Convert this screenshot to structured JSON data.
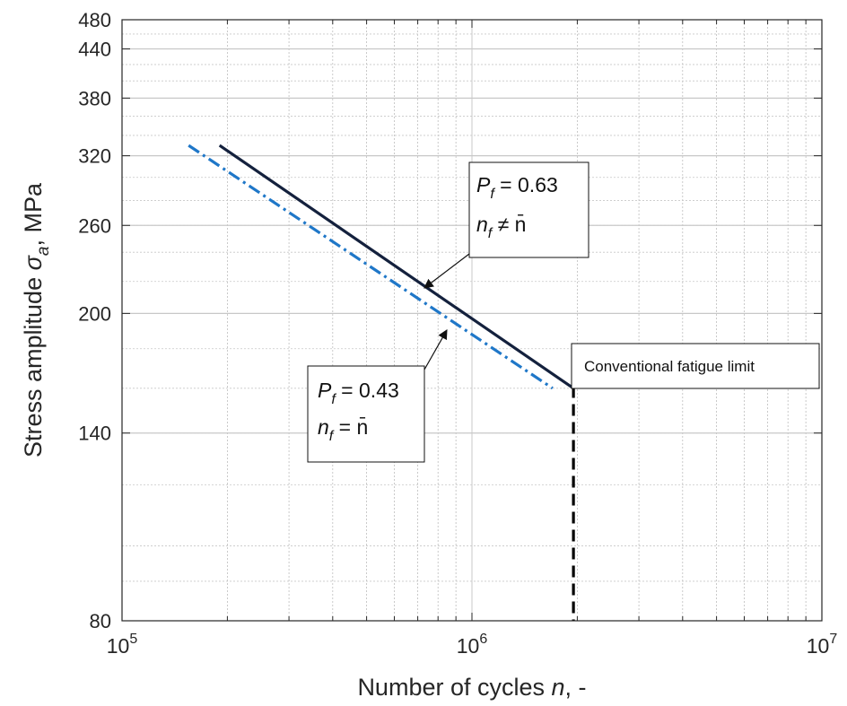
{
  "chart_data": {
    "type": "line",
    "x_scale": "log",
    "y_scale": "log",
    "xlim": [
      100000,
      10000000
    ],
    "ylim": [
      80,
      480
    ],
    "grid": true,
    "xlabel_prefix": "Number of cycles ",
    "xlabel_var": "n",
    "xlabel_suffix": ", -",
    "ylabel_prefix": "Stress amplitude ",
    "ylabel_var": "σ",
    "ylabel_sub": "a",
    "ylabel_suffix": ", MPa",
    "x_ticks": [
      {
        "value": 100000,
        "base": "10",
        "exp": "5"
      },
      {
        "value": 1000000,
        "base": "10",
        "exp": "6"
      },
      {
        "value": 10000000,
        "base": "10",
        "exp": "7"
      }
    ],
    "y_ticks": [
      80,
      140,
      200,
      260,
      320,
      380,
      440,
      480
    ],
    "series": [
      {
        "key": "pf063",
        "color": "#14213d",
        "style": "solid",
        "x": [
          190000,
          1950000
        ],
        "y": [
          330,
          160
        ]
      },
      {
        "key": "pf043",
        "color": "#1f77c8",
        "style": "dashdot",
        "x": [
          155000,
          1700000
        ],
        "y": [
          330,
          160
        ]
      },
      {
        "key": "fatigue_limit_h",
        "color": "#000000",
        "style": "dashed",
        "x": [
          1950000,
          10000000
        ],
        "y": [
          161,
          161
        ]
      },
      {
        "key": "fatigue_limit_v",
        "color": "#000000",
        "style": "dashed",
        "x": [
          1950000,
          1950000
        ],
        "y": [
          161,
          80
        ]
      }
    ],
    "annotations": {
      "pf063": {
        "p_label": "P",
        "p_sub": "f",
        "p_value": " = 0.63",
        "n_label": "n",
        "n_sub": "f",
        "n_relation": " ≠ ",
        "n_bar": "n̄"
      },
      "pf043": {
        "p_label": "P",
        "p_sub": "f",
        "p_value": " = 0.43",
        "n_label": "n",
        "n_sub": "f",
        "n_relation": " = ",
        "n_bar": "n̄"
      },
      "fatigue_limit": "Conventional fatigue limit"
    }
  }
}
